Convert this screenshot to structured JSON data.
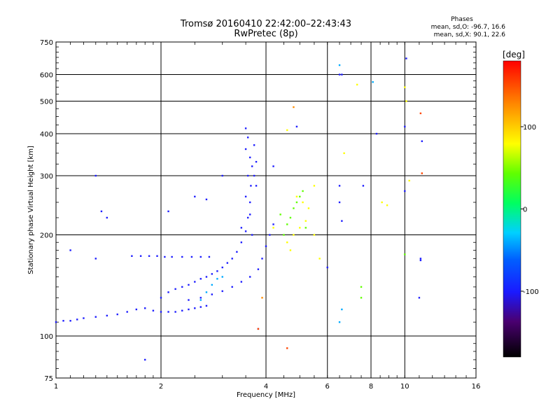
{
  "header": {
    "title_line1": "Tromsø 20160410 22:42:00–22:43:43",
    "title_line2": "RwPretec (8p)",
    "phase_heading": "Phases",
    "phase_o": "mean, sd,O:  -96.7, 16.6",
    "phase_x": "mean, sd,X:  90.1, 22.6"
  },
  "colorbar": {
    "unit": "[deg]",
    "ticks": [
      "100",
      "0",
      "-100"
    ],
    "tick_values": [
      100,
      0,
      -100
    ],
    "range": [
      -180,
      180
    ]
  },
  "chart_data": {
    "type": "scatter",
    "xlabel": "Frequency [MHz]",
    "ylabel": "Stationary phase Virtual Height [km]",
    "x_scale": "log",
    "y_scale": "log",
    "xlim": [
      1,
      16
    ],
    "ylim": [
      75,
      750
    ],
    "x_ticks": [
      1,
      2,
      4,
      6,
      8,
      10,
      16
    ],
    "x_tick_labels": [
      "1",
      "2",
      "4",
      "6",
      "8",
      "10",
      "16"
    ],
    "y_ticks": [
      75,
      100,
      200,
      300,
      400,
      500,
      600,
      750
    ],
    "y_tick_labels": [
      "75",
      "100",
      "200",
      "300",
      "400",
      "500",
      "600",
      "750"
    ],
    "grid": true,
    "color_by": "phase (deg)",
    "series": [
      {
        "points": [
          [
            1.0,
            110,
            -100
          ],
          [
            1.05,
            111,
            -100
          ],
          [
            1.1,
            111,
            -100
          ],
          [
            1.15,
            112,
            -100
          ],
          [
            1.2,
            113,
            -100
          ],
          [
            1.3,
            114,
            -100
          ],
          [
            1.4,
            115,
            -100
          ],
          [
            1.5,
            116,
            -100
          ],
          [
            1.6,
            118,
            -100
          ],
          [
            1.7,
            120,
            -100
          ],
          [
            1.8,
            121,
            -100
          ],
          [
            1.9,
            119,
            -100
          ],
          [
            2.0,
            118,
            -100
          ],
          [
            2.1,
            118,
            -100
          ],
          [
            2.2,
            118,
            -100
          ],
          [
            2.3,
            119,
            -100
          ],
          [
            2.4,
            120,
            -100
          ],
          [
            2.5,
            121,
            -100
          ],
          [
            2.6,
            122,
            -100
          ],
          [
            2.7,
            123,
            -100
          ],
          [
            1.65,
            173,
            -100
          ],
          [
            1.75,
            173,
            -100
          ],
          [
            1.85,
            173,
            -100
          ],
          [
            1.95,
            173,
            -100
          ],
          [
            2.05,
            172,
            -100
          ],
          [
            2.15,
            172,
            -100
          ],
          [
            2.3,
            172,
            -100
          ],
          [
            2.45,
            172,
            -100
          ],
          [
            2.6,
            172,
            -100
          ],
          [
            2.75,
            172,
            -100
          ],
          [
            2.0,
            130,
            -100
          ],
          [
            2.1,
            135,
            -100
          ],
          [
            2.2,
            138,
            -100
          ],
          [
            2.3,
            140,
            -100
          ],
          [
            2.4,
            142,
            -100
          ],
          [
            2.5,
            145,
            -100
          ],
          [
            2.6,
            148,
            -100
          ],
          [
            2.7,
            150,
            -100
          ],
          [
            2.8,
            153,
            -100
          ],
          [
            2.9,
            156,
            -100
          ],
          [
            3.0,
            160,
            -100
          ],
          [
            3.1,
            165,
            -100
          ],
          [
            3.2,
            170,
            -100
          ],
          [
            3.3,
            178,
            -100
          ],
          [
            3.4,
            190,
            -100
          ],
          [
            3.5,
            205,
            -100
          ],
          [
            3.55,
            225,
            -100
          ],
          [
            3.6,
            250,
            -100
          ],
          [
            3.62,
            280,
            -100
          ],
          [
            3.65,
            320,
            -100
          ],
          [
            3.7,
            370,
            -100
          ],
          [
            2.4,
            128,
            -100
          ],
          [
            2.6,
            130,
            -100
          ],
          [
            2.8,
            133,
            -100
          ],
          [
            3.0,
            136,
            -100
          ],
          [
            3.2,
            140,
            -100
          ],
          [
            3.4,
            145,
            -100
          ],
          [
            3.6,
            150,
            -100
          ],
          [
            3.8,
            158,
            -100
          ],
          [
            3.9,
            170,
            -100
          ],
          [
            4.0,
            185,
            -100
          ],
          [
            4.1,
            200,
            -100
          ],
          [
            4.2,
            215,
            -100
          ],
          [
            3.4,
            210,
            -100
          ],
          [
            3.5,
            260,
            -100
          ],
          [
            3.55,
            300,
            -100
          ],
          [
            3.6,
            340,
            -100
          ],
          [
            3.5,
            360,
            -100
          ],
          [
            3.55,
            390,
            -100
          ],
          [
            3.5,
            415,
            -100
          ],
          [
            3.6,
            230,
            -100
          ],
          [
            3.7,
            300,
            -100
          ],
          [
            3.75,
            280,
            -100
          ],
          [
            3.65,
            200,
            -100
          ],
          [
            3.75,
            330,
            -100
          ],
          [
            2.7,
            135,
            -40
          ],
          [
            2.8,
            142,
            -40
          ],
          [
            2.9,
            148,
            -40
          ],
          [
            3.0,
            150,
            -40
          ],
          [
            2.6,
            128,
            -40
          ],
          [
            4.5,
            200,
            40
          ],
          [
            4.6,
            215,
            40
          ],
          [
            4.7,
            225,
            40
          ],
          [
            4.8,
            240,
            40
          ],
          [
            4.9,
            250,
            40
          ],
          [
            5.0,
            260,
            40
          ],
          [
            5.1,
            270,
            40
          ],
          [
            4.4,
            230,
            40
          ],
          [
            5.2,
            210,
            40
          ],
          [
            4.6,
            190,
            100
          ],
          [
            4.8,
            200,
            100
          ],
          [
            5.0,
            210,
            100
          ],
          [
            5.2,
            220,
            100
          ],
          [
            4.9,
            260,
            100
          ],
          [
            5.1,
            250,
            100
          ],
          [
            5.3,
            240,
            100
          ],
          [
            4.7,
            180,
            100
          ],
          [
            5.5,
            200,
            100
          ],
          [
            1.3,
            300,
            -100
          ],
          [
            1.35,
            235,
            -100
          ],
          [
            1.4,
            225,
            -100
          ],
          [
            1.1,
            180,
            -100
          ],
          [
            1.3,
            170,
            -100
          ],
          [
            1.8,
            85,
            -100
          ],
          [
            2.1,
            235,
            -100
          ],
          [
            2.5,
            260,
            -100
          ],
          [
            2.7,
            255,
            -100
          ],
          [
            3.0,
            300,
            -100
          ],
          [
            3.8,
            105,
            -100
          ],
          [
            4.2,
            320,
            -100
          ],
          [
            4.9,
            420,
            -100
          ],
          [
            6.5,
            640,
            -40
          ],
          [
            6.5,
            600,
            -100
          ],
          [
            6.6,
            600,
            -100
          ],
          [
            6.7,
            350,
            100
          ],
          [
            6.5,
            280,
            -100
          ],
          [
            6.5,
            250,
            -100
          ],
          [
            6.6,
            220,
            -100
          ],
          [
            6.5,
            110,
            -40
          ],
          [
            6.6,
            120,
            -40
          ],
          [
            7.3,
            560,
            100
          ],
          [
            7.6,
            280,
            -100
          ],
          [
            7.5,
            140,
            40
          ],
          [
            7.5,
            130,
            40
          ],
          [
            8.1,
            570,
            -40
          ],
          [
            8.3,
            400,
            -100
          ],
          [
            8.6,
            250,
            100
          ],
          [
            8.9,
            245,
            100
          ],
          [
            10.1,
            670,
            -100
          ],
          [
            10.0,
            550,
            100
          ],
          [
            10.1,
            500,
            100
          ],
          [
            10.0,
            420,
            -100
          ],
          [
            10.0,
            270,
            -100
          ],
          [
            10.0,
            175,
            40
          ],
          [
            10.3,
            290,
            100
          ],
          [
            11.1,
            460,
            160
          ],
          [
            11.2,
            380,
            -100
          ],
          [
            11.2,
            305,
            160
          ],
          [
            11.1,
            170,
            -100
          ],
          [
            11.1,
            168,
            -100
          ],
          [
            11.0,
            130,
            -100
          ],
          [
            4.6,
            92,
            160
          ],
          [
            4.8,
            480,
            140
          ],
          [
            5.5,
            280,
            100
          ],
          [
            5.7,
            170,
            100
          ],
          [
            6.0,
            160,
            -100
          ],
          [
            4.2,
            210,
            100
          ],
          [
            3.9,
            130,
            140
          ],
          [
            3.8,
            105,
            160
          ],
          [
            4.6,
            410,
            100
          ]
        ]
      }
    ]
  }
}
